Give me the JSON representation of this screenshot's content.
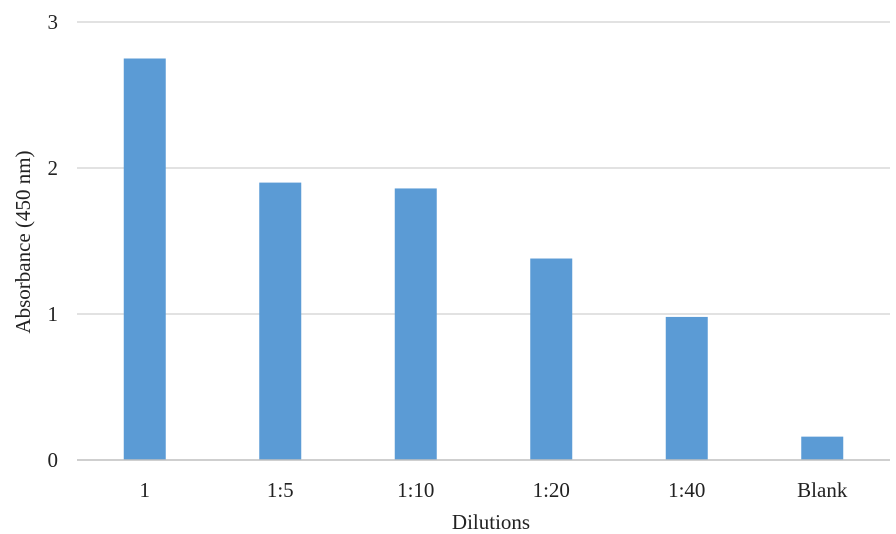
{
  "chart_data": {
    "type": "bar",
    "categories": [
      "1",
      "1:5",
      "1:10",
      "1:20",
      "1:40",
      "Blank"
    ],
    "values": [
      2.75,
      1.9,
      1.86,
      1.38,
      0.98,
      0.16
    ],
    "xlabel": "Dilutions",
    "ylabel": "Absorbance (450 nm)",
    "ylim": [
      0,
      3
    ],
    "yticks": [
      "0",
      "1",
      "2",
      "3"
    ],
    "grid": true,
    "legend": "none",
    "bar_color": "#5b9bd5",
    "gridline_color": "#d9d9d9",
    "axis_color": "#bfbfbf"
  }
}
